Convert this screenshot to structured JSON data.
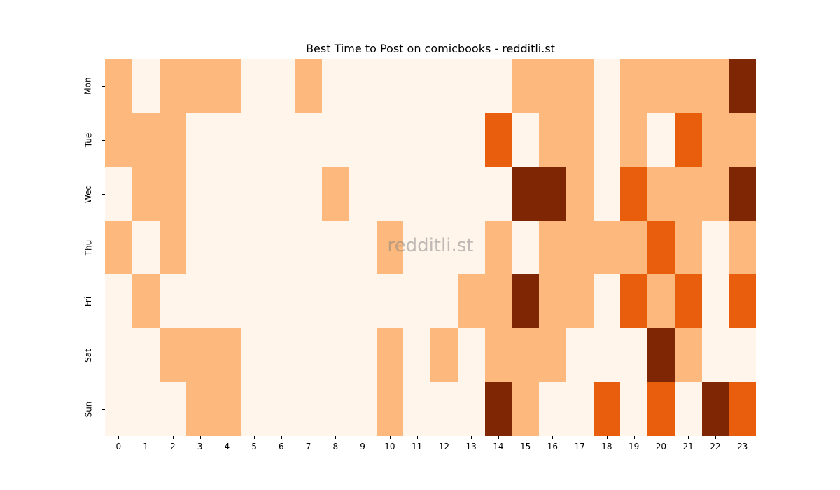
{
  "chart_data": {
    "type": "heatmap",
    "title": "Best Time to Post on comicbooks - redditli.st",
    "xlabel": "",
    "ylabel": "",
    "x": [
      "0",
      "1",
      "2",
      "3",
      "4",
      "5",
      "6",
      "7",
      "8",
      "9",
      "10",
      "11",
      "12",
      "13",
      "14",
      "15",
      "16",
      "17",
      "18",
      "19",
      "20",
      "21",
      "22",
      "23"
    ],
    "y": [
      "Mon",
      "Tue",
      "Wed",
      "Thu",
      "Fri",
      "Sat",
      "Sun"
    ],
    "values": [
      [
        1,
        0,
        1,
        1,
        1,
        0,
        0,
        1,
        0,
        0,
        0,
        0,
        0,
        0,
        0,
        1,
        1,
        1,
        0,
        1,
        1,
        1,
        1,
        3
      ],
      [
        1,
        1,
        1,
        0,
        0,
        0,
        0,
        0,
        0,
        0,
        0,
        0,
        0,
        0,
        2,
        0,
        1,
        1,
        0,
        1,
        0,
        2,
        1,
        1
      ],
      [
        0,
        1,
        1,
        0,
        0,
        0,
        0,
        0,
        1,
        0,
        0,
        0,
        0,
        0,
        0,
        3,
        3,
        1,
        0,
        2,
        1,
        1,
        1,
        3
      ],
      [
        1,
        0,
        1,
        0,
        0,
        0,
        0,
        0,
        0,
        0,
        1,
        0,
        0,
        0,
        1,
        0,
        1,
        1,
        1,
        1,
        2,
        1,
        0,
        1
      ],
      [
        0,
        1,
        0,
        0,
        0,
        0,
        0,
        0,
        0,
        0,
        0,
        0,
        0,
        1,
        1,
        3,
        1,
        1,
        0,
        2,
        1,
        2,
        0,
        2
      ],
      [
        0,
        0,
        1,
        1,
        1,
        0,
        0,
        0,
        0,
        0,
        1,
        0,
        1,
        0,
        1,
        1,
        1,
        0,
        0,
        0,
        3,
        1,
        0,
        0
      ],
      [
        0,
        0,
        0,
        1,
        1,
        0,
        0,
        0,
        0,
        0,
        1,
        0,
        0,
        0,
        3,
        1,
        0,
        0,
        2,
        0,
        2,
        0,
        3,
        2
      ]
    ],
    "colorscale": [
      "#fff5eb",
      "#fdb97d",
      "#e95e0d",
      "#7f2704"
    ],
    "colormap": "Oranges",
    "grid": false,
    "legend": "none",
    "watermark": "redditli.st"
  }
}
